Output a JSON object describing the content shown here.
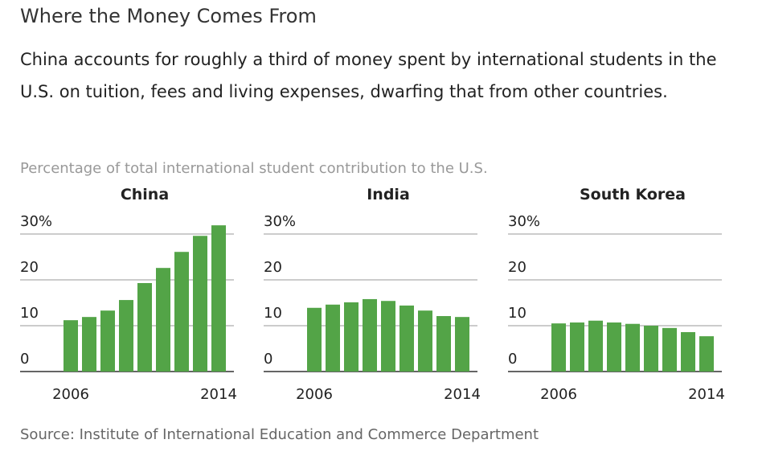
{
  "title": "Where the Money Comes From",
  "subtitle": "China accounts for roughly a third of money spent by international students in the U.S. on tuition, fees and living expenses, dwarfing that from other countries.",
  "ylabel": "Percentage of total international student contribution to the U.S.",
  "source": "Source: Institute of International Education and Commerce Department",
  "chart_data": [
    {
      "type": "bar",
      "title": "China",
      "color": "#53a447",
      "categories": [
        "2006",
        null,
        null,
        null,
        null,
        null,
        null,
        null,
        "2014"
      ],
      "values": [
        11.2,
        11.9,
        13.3,
        15.6,
        19.3,
        22.6,
        26.1,
        29.6,
        31.9
      ],
      "ylim": [
        0,
        32
      ],
      "yticks": [
        0,
        10,
        20,
        {
          "value": 30,
          "label": "30%"
        }
      ],
      "grid": true
    },
    {
      "type": "bar",
      "title": "India",
      "color": "#53a447",
      "categories": [
        "2006",
        null,
        null,
        null,
        null,
        null,
        null,
        null,
        "2014"
      ],
      "values": [
        13.9,
        14.6,
        15.1,
        15.8,
        15.4,
        14.4,
        13.3,
        12.1,
        11.9
      ],
      "ylim": [
        0,
        32
      ],
      "yticks": [
        0,
        10,
        20,
        {
          "value": 30,
          "label": "30%"
        }
      ],
      "grid": true
    },
    {
      "type": "bar",
      "title": "South Korea",
      "color": "#53a447",
      "categories": [
        "2006",
        null,
        null,
        null,
        null,
        null,
        null,
        null,
        "2014"
      ],
      "values": [
        10.5,
        10.7,
        11.1,
        10.7,
        10.4,
        10.0,
        9.5,
        8.6,
        7.7
      ],
      "ylim": [
        0,
        32
      ],
      "yticks": [
        0,
        10,
        20,
        {
          "value": 30,
          "label": "30%"
        }
      ],
      "grid": true
    }
  ]
}
